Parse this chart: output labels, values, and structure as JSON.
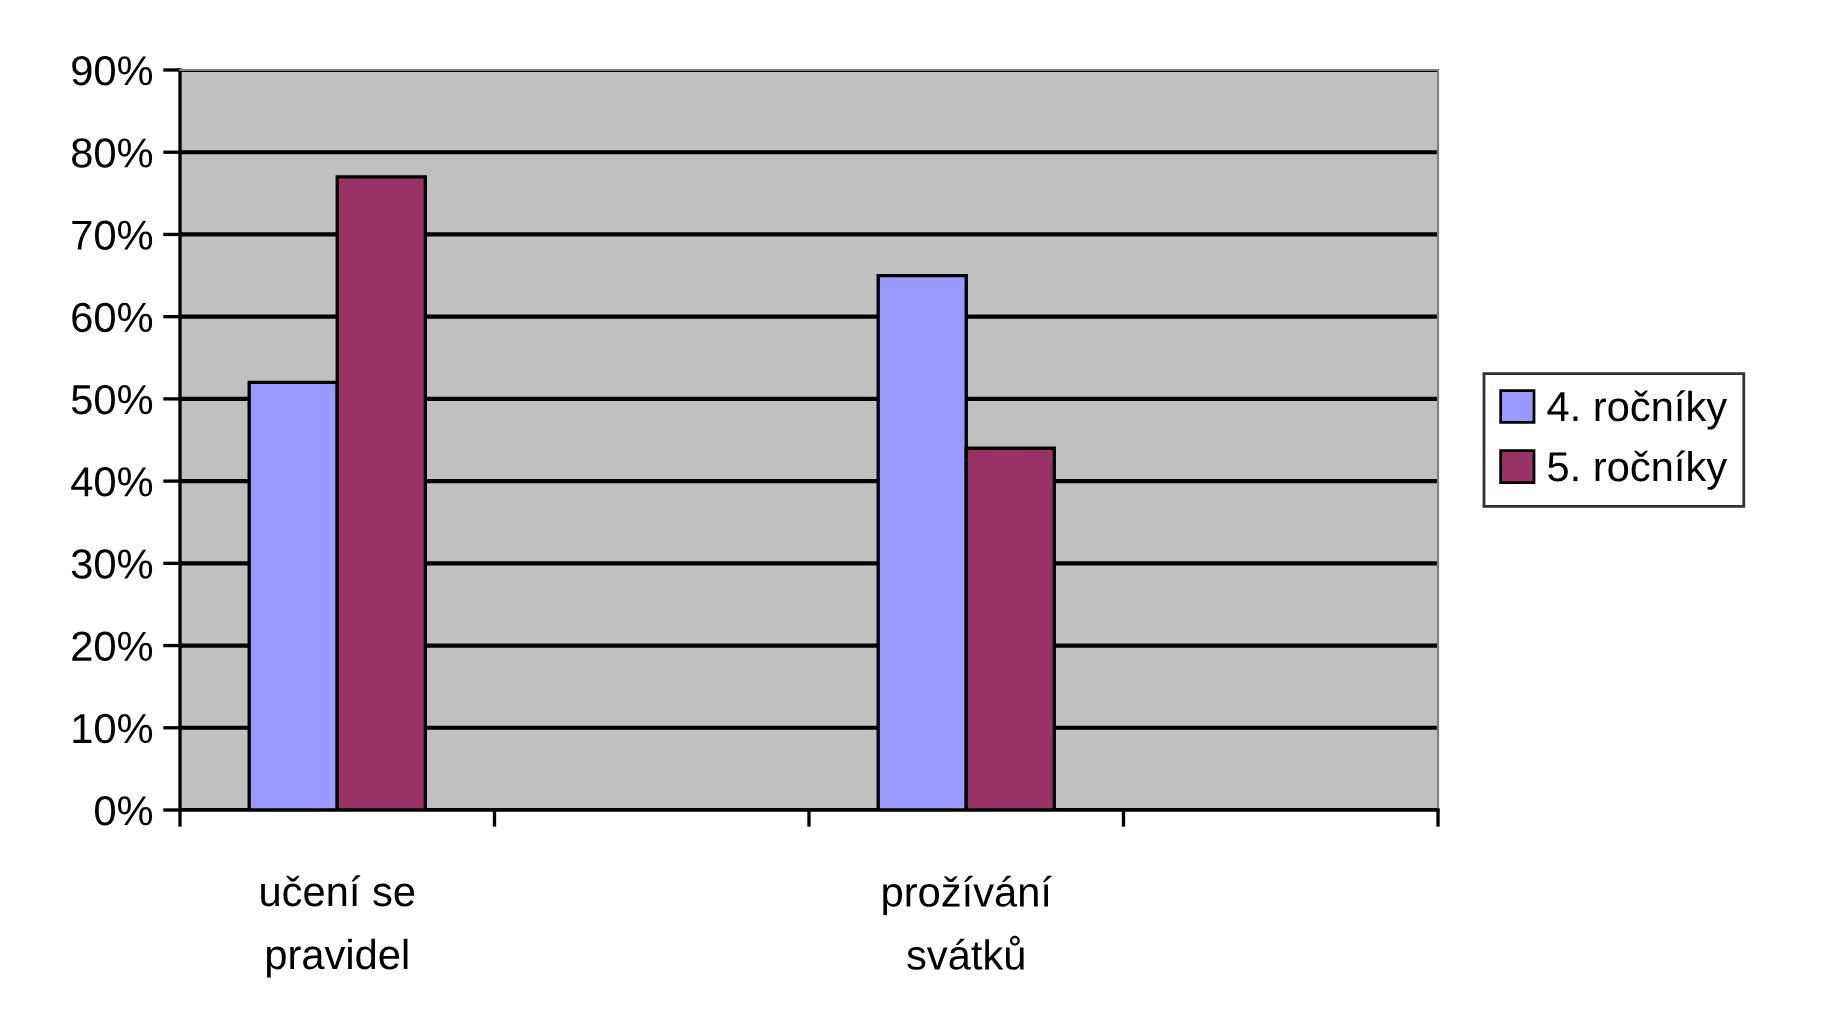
{
  "chart_data": {
    "type": "bar",
    "categories": [
      "učení se\npravidel",
      null,
      "prožívání\nsvátků",
      null
    ],
    "series": [
      {
        "name": "4. ročníky",
        "color": "#9999ff",
        "values": [
          52,
          null,
          65,
          null
        ]
      },
      {
        "name": "5. ročníky",
        "color": "#993366",
        "values": [
          77,
          null,
          44,
          null
        ]
      }
    ],
    "ylim": [
      0,
      90
    ],
    "yticks": [
      {
        "value": 0,
        "label": "0%"
      },
      {
        "value": 10,
        "label": "10%"
      },
      {
        "value": 20,
        "label": "20%"
      },
      {
        "value": 30,
        "label": "30%"
      },
      {
        "value": 40,
        "label": "40%"
      },
      {
        "value": 50,
        "label": "50%"
      },
      {
        "value": 60,
        "label": "60%"
      },
      {
        "value": 70,
        "label": "70%"
      },
      {
        "value": 80,
        "label": "80%"
      },
      {
        "value": 90,
        "label": "90%"
      }
    ],
    "grid": "y",
    "legend": "right"
  }
}
